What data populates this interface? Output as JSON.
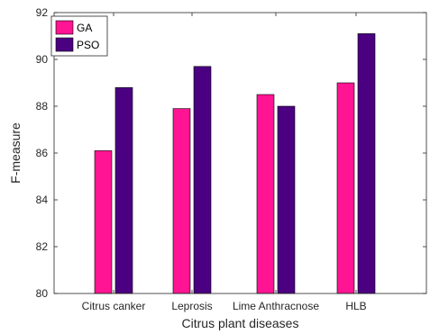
{
  "chart_data": {
    "type": "bar",
    "categories": [
      "Citrus canker",
      "Leprosis",
      "Lime Anthracnose",
      "HLB"
    ],
    "series": [
      {
        "name": "GA",
        "values": [
          86.1,
          87.9,
          88.5,
          89.0
        ],
        "color": "#ff1493"
      },
      {
        "name": "PSO",
        "values": [
          88.8,
          89.7,
          88.0,
          91.1
        ],
        "color": "#4b0082"
      }
    ],
    "xlabel": "Citrus plant diseases",
    "ylabel": "F-measure",
    "ylim": [
      80,
      92
    ],
    "yticks": [
      80,
      82,
      84,
      86,
      88,
      90,
      92
    ],
    "grid": false,
    "legend": "top-left",
    "box": true
  }
}
